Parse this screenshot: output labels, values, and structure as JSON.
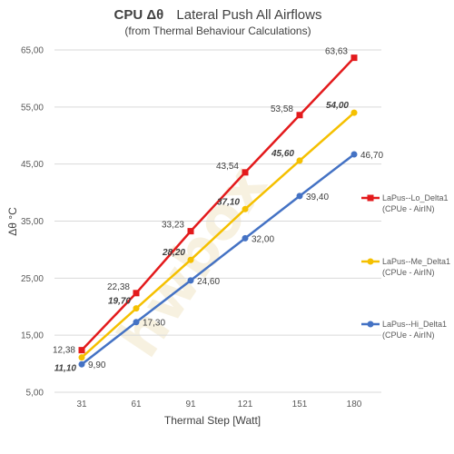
{
  "chart_data": {
    "type": "line",
    "title": "CPU  Δθ   Lateral Push All Airflows",
    "title_bold": "CPU  Δθ",
    "title_rest": "Lateral Push All Airflows",
    "subtitle": "(from Thermal Behaviour Calculations)",
    "xlabel": "Thermal Step [Watt]",
    "ylabel": "Δθ °C",
    "x": [
      31,
      61,
      91,
      121,
      151,
      180
    ],
    "x_tick_labels": [
      "31",
      "61",
      "91",
      "121",
      "151",
      "180"
    ],
    "ylim": [
      5,
      65
    ],
    "y_ticks": [
      5,
      15,
      25,
      35,
      45,
      55,
      65
    ],
    "y_tick_labels": [
      "5,00",
      "15,00",
      "25,00",
      "35,00",
      "45,00",
      "55,00",
      "65,00"
    ],
    "grid": true,
    "legend_position": "right",
    "watermark": "hwbox",
    "series": [
      {
        "name": "LaPus--Lo_Delta1",
        "legend_sub": "(CPUe - AirIN)",
        "color": "#e31a1c",
        "marker": "square",
        "values": [
          12.38,
          22.38,
          33.23,
          43.54,
          53.58,
          63.63
        ],
        "labels": [
          "12,38",
          "22,38",
          "33,23",
          "43,54",
          "53,58",
          "63,63"
        ],
        "label_style": "normal"
      },
      {
        "name": "LaPus--Me_Delta1",
        "legend_sub": "(CPUe - AirIN)",
        "color": "#f5c000",
        "marker": "circle",
        "values": [
          11.1,
          19.7,
          28.2,
          37.1,
          45.6,
          54.0
        ],
        "labels": [
          "11,10",
          "19,70",
          "28,20",
          "37,10",
          "45,60",
          "54,00"
        ],
        "label_style": "bold-italic"
      },
      {
        "name": "LaPus--Hi_Delta1",
        "legend_sub": "(CPUe - AirIN)",
        "color": "#4472c4",
        "marker": "circle",
        "values": [
          9.9,
          17.3,
          24.6,
          32.0,
          39.4,
          46.7
        ],
        "labels": [
          "9,90",
          "17,30",
          "24,60",
          "32,00",
          "39,40",
          "46,70"
        ],
        "label_style": "normal"
      }
    ]
  }
}
